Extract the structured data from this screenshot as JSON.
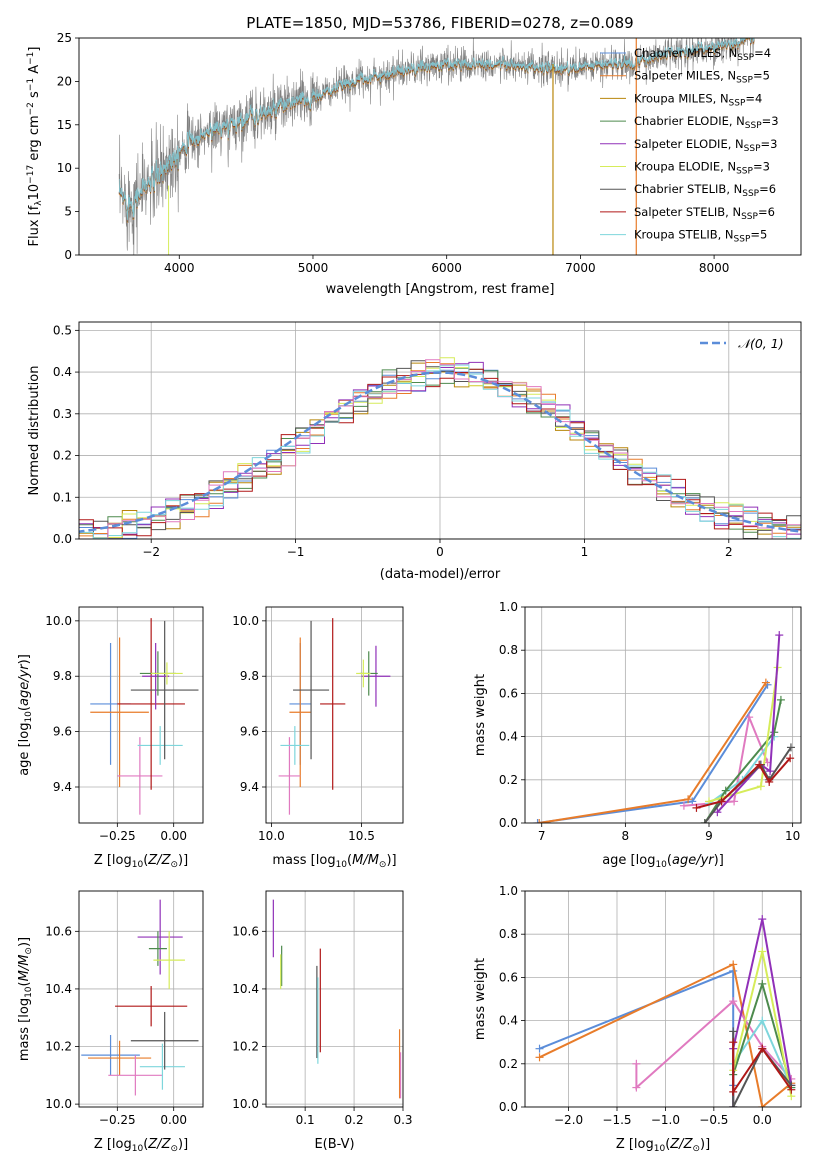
{
  "title": "PLATE=1850, MJD=53786, FIBERID=0278, z=0.089",
  "colors": {
    "chabrier_miles": "#5b8dd9",
    "salpeter_miles": "#e87c2a",
    "kroupa_miles": "#b8860b",
    "chabrier_elodie": "#4d8a4d",
    "salpeter_elodie": "#9030b8",
    "kroupa_elodie": "#d6ec5a",
    "chabrier_stelib": "#555555",
    "salpeter_stelib": "#b01818",
    "kroupa_stelib": "#7ed6dc",
    "pink": "#e07ac0",
    "model_line": "#7dd0dc",
    "data_line": "#808080",
    "gauss_line": "#5b8dd9",
    "grid": "#b0b0b0"
  },
  "chart_data": [
    {
      "id": "spectrum",
      "type": "line",
      "xlabel": "wavelength [Angstrom, rest frame]",
      "ylabel": "Flux [f_λ 10^-17 erg cm^-2 s^-1 A^-1]",
      "xlim": [
        3250,
        8650
      ],
      "ylim": [
        0,
        25
      ],
      "xticks": [
        4000,
        5000,
        6000,
        7000,
        8000
      ],
      "yticks": [
        0,
        5,
        10,
        15,
        20,
        25
      ],
      "grid": false,
      "legend_position": "right",
      "legend": [
        {
          "label": "Chabrier MILES, N",
          "sub": "SSP",
          "tail": "=4",
          "color": "#5b8dd9"
        },
        {
          "label": "Salpeter MILES, N",
          "sub": "SSP",
          "tail": "=5",
          "color": "#e87c2a"
        },
        {
          "label": "Kroupa MILES, N",
          "sub": "SSP",
          "tail": "=4",
          "color": "#b8860b"
        },
        {
          "label": "Chabrier ELODIE, N",
          "sub": "SSP",
          "tail": "=3",
          "color": "#4d8a4d"
        },
        {
          "label": "Salpeter ELODIE, N",
          "sub": "SSP",
          "tail": "=3",
          "color": "#9030b8"
        },
        {
          "label": "Kroupa ELODIE, N",
          "sub": "SSP",
          "tail": "=3",
          "color": "#d6ec5a"
        },
        {
          "label": "Chabrier STELIB, N",
          "sub": "SSP",
          "tail": "=6",
          "color": "#555555"
        },
        {
          "label": "Salpeter STELIB, N",
          "sub": "SSP",
          "tail": "=6",
          "color": "#b01818"
        },
        {
          "label": "Kroupa STELIB, N",
          "sub": "SSP",
          "tail": "=5",
          "color": "#7ed6dc"
        }
      ],
      "continuum": [
        [
          3550,
          6.5
        ],
        [
          3650,
          6
        ],
        [
          3750,
          8
        ],
        [
          3850,
          9
        ],
        [
          3950,
          11.5
        ],
        [
          4050,
          13
        ],
        [
          4150,
          13.5
        ],
        [
          4250,
          14.5
        ],
        [
          4350,
          14.5
        ],
        [
          4450,
          15.5
        ],
        [
          4550,
          16
        ],
        [
          4700,
          16.5
        ],
        [
          4850,
          17.5
        ],
        [
          5000,
          18
        ],
        [
          5150,
          19
        ],
        [
          5300,
          20
        ],
        [
          5450,
          20.5
        ],
        [
          5600,
          21
        ],
        [
          5800,
          21.5
        ],
        [
          6000,
          22
        ],
        [
          6200,
          22
        ],
        [
          6400,
          22
        ],
        [
          6600,
          21.5
        ],
        [
          6800,
          21.5
        ],
        [
          7000,
          21.5
        ],
        [
          7200,
          22
        ],
        [
          7400,
          22
        ],
        [
          7600,
          23
        ],
        [
          7800,
          23.5
        ],
        [
          8000,
          24
        ],
        [
          8200,
          24.5
        ],
        [
          8300,
          25
        ]
      ]
    },
    {
      "id": "residuals",
      "type": "histogram",
      "xlabel": "(data-model)/error",
      "ylabel": "Normed distribution",
      "xlim": [
        -2.5,
        2.5
      ],
      "ylim": [
        0,
        0.52
      ],
      "xticks": [
        -2,
        -1,
        0,
        1,
        2
      ],
      "yticks": [
        0.0,
        0.1,
        0.2,
        0.3,
        0.4,
        0.5
      ],
      "grid": true,
      "legend_position": "top-right",
      "legend": [
        {
          "label": "𝒩(0, 1)",
          "color": "#5b8dd9"
        }
      ],
      "gaussian": {
        "mean": 0,
        "sigma": 1
      }
    },
    {
      "id": "age_vs_Z",
      "type": "errorbar",
      "xlabel": "Z [log10(Z/Z⊙)]",
      "ylabel": "age [log10(age/yr)]",
      "xlim": [
        -0.42,
        0.13
      ],
      "ylim": [
        9.27,
        10.05
      ],
      "xticks": [
        -0.25,
        0.0
      ],
      "yticks": [
        9.4,
        9.6,
        9.8,
        10.0
      ],
      "grid": true,
      "points": [
        {
          "x": -0.28,
          "xerr": 0.09,
          "y": 9.7,
          "yerr": 0.22,
          "color": "#5b8dd9"
        },
        {
          "x": -0.24,
          "xerr": 0.13,
          "y": 9.67,
          "yerr": 0.27,
          "color": "#e87c2a"
        },
        {
          "x": -0.15,
          "xerr": 0.1,
          "y": 9.44,
          "yerr": 0.14,
          "color": "#e07ac0"
        },
        {
          "x": -0.06,
          "xerr": 0.1,
          "y": 9.55,
          "yerr": 0.07,
          "color": "#7ed6dc"
        },
        {
          "x": -0.1,
          "xerr": 0.15,
          "y": 9.7,
          "yerr": 0.31,
          "color": "#b01818"
        },
        {
          "x": -0.04,
          "xerr": 0.15,
          "y": 9.75,
          "yerr": 0.25,
          "color": "#555555"
        },
        {
          "x": -0.08,
          "xerr": 0.06,
          "y": 9.8,
          "yerr": 0.12,
          "color": "#9030b8"
        },
        {
          "x": -0.07,
          "xerr": 0.08,
          "y": 9.81,
          "yerr": 0.08,
          "color": "#4d8a4d"
        },
        {
          "x": -0.03,
          "xerr": 0.07,
          "y": 9.81,
          "yerr": 0.04,
          "color": "#d6ec5a"
        }
      ]
    },
    {
      "id": "age_vs_mass",
      "type": "errorbar",
      "xlabel": "mass [log10(M/M⊙)]",
      "ylabel": "",
      "xlim": [
        9.97,
        10.73
      ],
      "ylim": [
        9.27,
        10.05
      ],
      "xticks": [
        10.0,
        10.5
      ],
      "yticks": [
        9.4,
        9.6,
        9.8,
        10.0
      ],
      "grid": true,
      "points": [
        {
          "x": 10.16,
          "xerr": 0.06,
          "y": 9.7,
          "yerr": 0.22,
          "color": "#5b8dd9"
        },
        {
          "x": 10.16,
          "xerr": 0.06,
          "y": 9.67,
          "yerr": 0.27,
          "color": "#e87c2a"
        },
        {
          "x": 10.1,
          "xerr": 0.06,
          "y": 9.44,
          "yerr": 0.14,
          "color": "#e07ac0"
        },
        {
          "x": 10.13,
          "xerr": 0.08,
          "y": 9.55,
          "yerr": 0.07,
          "color": "#7ed6dc"
        },
        {
          "x": 10.34,
          "xerr": 0.07,
          "y": 9.7,
          "yerr": 0.31,
          "color": "#b01818"
        },
        {
          "x": 10.22,
          "xerr": 0.1,
          "y": 9.75,
          "yerr": 0.25,
          "color": "#555555"
        },
        {
          "x": 10.58,
          "xerr": 0.08,
          "y": 9.8,
          "yerr": 0.11,
          "color": "#9030b8"
        },
        {
          "x": 10.54,
          "xerr": 0.05,
          "y": 9.81,
          "yerr": 0.08,
          "color": "#4d8a4d"
        },
        {
          "x": 10.51,
          "xerr": 0.04,
          "y": 9.81,
          "yerr": 0.05,
          "color": "#d6ec5a"
        }
      ]
    },
    {
      "id": "weight_vs_age",
      "type": "line",
      "xlabel": "age  [log10(age/yr)]",
      "ylabel": "mass weight",
      "xlim": [
        6.8,
        10.1
      ],
      "ylim": [
        0,
        1.0
      ],
      "xticks": [
        7,
        8,
        9,
        10
      ],
      "yticks": [
        0.0,
        0.2,
        0.4,
        0.6,
        0.8,
        1.0
      ],
      "grid": true,
      "series": [
        {
          "color": "#5b8dd9",
          "x": [
            6.95,
            8.8,
            9.7
          ],
          "y": [
            0.0,
            0.1,
            0.64
          ]
        },
        {
          "color": "#e87c2a",
          "x": [
            6.97,
            8.75,
            9.68
          ],
          "y": [
            0.0,
            0.11,
            0.65
          ]
        },
        {
          "color": "#e07ac0",
          "x": [
            8.7,
            9.3,
            9.48,
            9.7
          ],
          "y": [
            0.08,
            0.1,
            0.49,
            0.28
          ]
        },
        {
          "color": "#7ed6dc",
          "x": [
            9.0,
            9.4,
            9.78
          ],
          "y": [
            0.09,
            0.2,
            0.4
          ]
        },
        {
          "color": "#4d8a4d",
          "x": [
            8.95,
            9.2,
            9.78,
            9.86
          ],
          "y": [
            0.0,
            0.15,
            0.42,
            0.57
          ]
        },
        {
          "color": "#d6ec5a",
          "x": [
            9.0,
            9.62,
            9.82
          ],
          "y": [
            0.1,
            0.17,
            0.72
          ]
        },
        {
          "color": "#9030b8",
          "x": [
            9.1,
            9.62,
            9.73,
            9.84
          ],
          "y": [
            0.05,
            0.27,
            0.24,
            0.87
          ]
        },
        {
          "color": "#555555",
          "x": [
            8.95,
            9.15,
            9.62,
            9.72,
            9.98
          ],
          "y": [
            0.0,
            0.1,
            0.27,
            0.2,
            0.35
          ]
        },
        {
          "color": "#b01818",
          "x": [
            8.85,
            9.15,
            9.6,
            9.72,
            9.97
          ],
          "y": [
            0.07,
            0.1,
            0.27,
            0.19,
            0.3
          ]
        }
      ]
    },
    {
      "id": "mass_vs_Z",
      "type": "errorbar",
      "xlabel": "Z [log10(Z/Z⊙)]",
      "ylabel": "mass [log10(M/M⊙)]",
      "xlim": [
        -0.42,
        0.13
      ],
      "ylim": [
        9.99,
        10.74
      ],
      "xticks": [
        -0.25,
        0.0
      ],
      "yticks": [
        10.0,
        10.2,
        10.4,
        10.6
      ],
      "grid": true,
      "points": [
        {
          "x": -0.28,
          "xerr": 0.13,
          "y": 10.17,
          "yerr": 0.07,
          "color": "#5b8dd9"
        },
        {
          "x": -0.24,
          "xerr": 0.14,
          "y": 10.16,
          "yerr": 0.06,
          "color": "#e87c2a"
        },
        {
          "x": -0.17,
          "xerr": 0.12,
          "y": 10.1,
          "yerr": 0.07,
          "color": "#e07ac0"
        },
        {
          "x": -0.05,
          "xerr": 0.1,
          "y": 10.13,
          "yerr": 0.08,
          "color": "#7ed6dc"
        },
        {
          "x": -0.1,
          "xerr": 0.16,
          "y": 10.34,
          "yerr": 0.07,
          "color": "#b01818"
        },
        {
          "x": -0.04,
          "xerr": 0.15,
          "y": 10.22,
          "yerr": 0.1,
          "color": "#555555"
        },
        {
          "x": -0.06,
          "xerr": 0.1,
          "y": 10.58,
          "yerr": 0.13,
          "color": "#9030b8"
        },
        {
          "x": -0.07,
          "xerr": 0.04,
          "y": 10.54,
          "yerr": 0.06,
          "color": "#4d8a4d"
        },
        {
          "x": -0.02,
          "xerr": 0.07,
          "y": 10.5,
          "yerr": 0.1,
          "color": "#d6ec5a"
        }
      ]
    },
    {
      "id": "mass_vs_ebv",
      "type": "errorbar",
      "xlabel": "E(B-V)",
      "ylabel": "",
      "xlim": [
        0.02,
        0.3
      ],
      "ylim": [
        9.99,
        10.74
      ],
      "xticks": [
        0.1,
        0.2,
        0.3
      ],
      "yticks": [
        10.0,
        10.2,
        10.4,
        10.6
      ],
      "grid": true,
      "points": [
        {
          "x": 0.035,
          "y": 10.61,
          "yerr": 0.1,
          "color": "#9030b8"
        },
        {
          "x": 0.052,
          "y": 10.48,
          "yerr": 0.07,
          "color": "#4d8a4d"
        },
        {
          "x": 0.05,
          "y": 10.46,
          "yerr": 0.06,
          "color": "#d6ec5a"
        },
        {
          "x": 0.124,
          "y": 10.32,
          "yerr": 0.16,
          "color": "#555555"
        },
        {
          "x": 0.126,
          "y": 10.29,
          "yerr": 0.15,
          "color": "#7ed6dc"
        },
        {
          "x": 0.131,
          "y": 10.36,
          "yerr": 0.18,
          "color": "#b01818"
        },
        {
          "x": 0.293,
          "y": 10.14,
          "yerr": 0.12,
          "color": "#e87c2a"
        },
        {
          "x": 0.295,
          "y": 10.1,
          "yerr": 0.08,
          "color": "#e07ac0"
        }
      ]
    },
    {
      "id": "weight_vs_Z",
      "type": "line",
      "xlabel": "Z [log10(Z/Z⊙)]",
      "ylabel": "mass weight",
      "xlim": [
        -2.45,
        0.4
      ],
      "ylim": [
        0,
        1.0
      ],
      "xticks": [
        -2.0,
        -1.5,
        -1.0,
        -0.5,
        0.0
      ],
      "yticks": [
        0.0,
        0.2,
        0.4,
        0.6,
        0.8,
        1.0
      ],
      "grid": true,
      "series": [
        {
          "color": "#5b8dd9",
          "x": [
            -2.3,
            -0.3,
            -0.3
          ],
          "y": [
            0.27,
            0.63,
            0.1
          ]
        },
        {
          "color": "#e87c2a",
          "x": [
            -2.3,
            -0.3,
            0.0,
            0.3
          ],
          "y": [
            0.23,
            0.66,
            0.0,
            0.11
          ]
        },
        {
          "color": "#e07ac0",
          "x": [
            -1.3,
            -1.3,
            -0.3,
            0.0,
            0.3
          ],
          "y": [
            0.2,
            0.09,
            0.49,
            0.28,
            0.13
          ]
        },
        {
          "color": "#7ed6dc",
          "x": [
            -0.3,
            0.0,
            0.3
          ],
          "y": [
            0.2,
            0.4,
            0.09
          ]
        },
        {
          "color": "#4d8a4d",
          "x": [
            -0.3,
            -0.3,
            0.0,
            0.3
          ],
          "y": [
            0.0,
            0.15,
            0.57,
            0.09
          ]
        },
        {
          "color": "#d6ec5a",
          "x": [
            -0.3,
            0.0,
            0.3
          ],
          "y": [
            0.17,
            0.72,
            0.05
          ]
        },
        {
          "color": "#9030b8",
          "x": [
            -0.3,
            -0.3,
            0.0,
            0.3
          ],
          "y": [
            0.0,
            0.27,
            0.87,
            0.1
          ]
        },
        {
          "color": "#555555",
          "x": [
            -0.3,
            -0.3,
            0.0,
            0.3
          ],
          "y": [
            0.35,
            0.0,
            0.27,
            0.1
          ]
        },
        {
          "color": "#b01818",
          "x": [
            -0.3,
            -0.3,
            0.0,
            0.3
          ],
          "y": [
            0.3,
            0.07,
            0.27,
            0.08
          ]
        }
      ]
    }
  ]
}
